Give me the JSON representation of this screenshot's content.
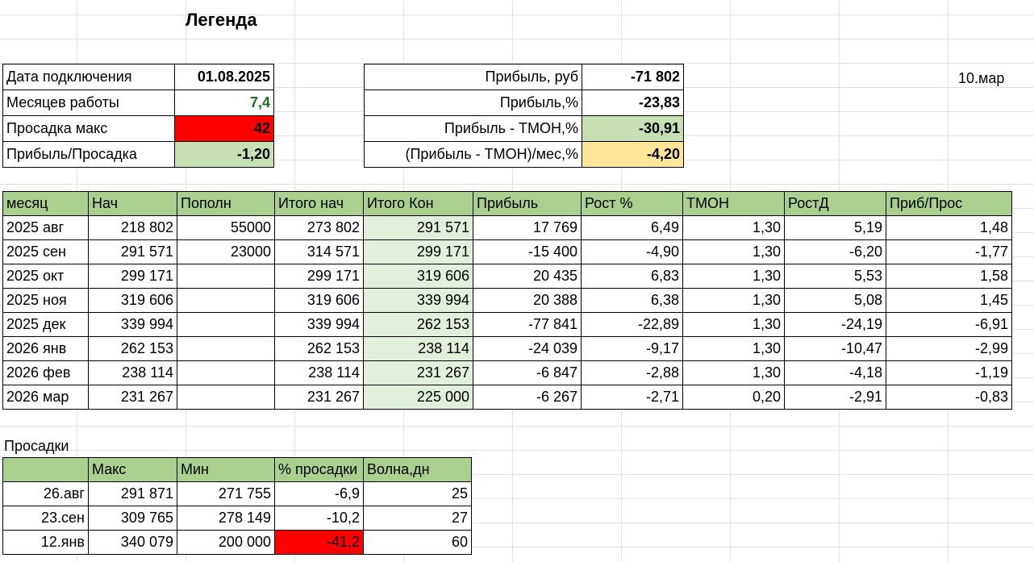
{
  "legend": {
    "title": "Легенда"
  },
  "date_label": "10.мар",
  "info_left": [
    {
      "label": "Дата подключения",
      "value": "01.08.2025"
    },
    {
      "label": "Месяцев работы",
      "value": "7,4"
    },
    {
      "label": "Просадка макс",
      "value": "42"
    },
    {
      "label": "Прибыль/Просадка",
      "value": "-1,20"
    }
  ],
  "info_right": [
    {
      "label": "Прибыль, руб",
      "value": "-71 802"
    },
    {
      "label": "Прибыль,%",
      "value": "-23,83"
    },
    {
      "label": "Прибыль - ТМОН,%",
      "value": "-30,91"
    },
    {
      "label": "(Прибыль - ТМОН)/мес,%",
      "value": "-4,20"
    }
  ],
  "main_table": {
    "headers": [
      "месяц",
      "Нач",
      "Пополн",
      "Итого нач",
      "Итого Кон",
      "Прибыль",
      "Рост %",
      "ТМОН",
      "РостД",
      "Приб/Прос"
    ],
    "rows": [
      [
        "2025 авг",
        "218 802",
        "55000",
        "273 802",
        "291 571",
        "17 769",
        "6,49",
        "1,30",
        "5,19",
        "1,48"
      ],
      [
        "2025 сен",
        "291 571",
        "23000",
        "314 571",
        "299 171",
        "-15 400",
        "-4,90",
        "1,30",
        "-6,20",
        "-1,77"
      ],
      [
        "2025 окт",
        "299 171",
        "",
        "299 171",
        "319 606",
        "20 435",
        "6,83",
        "1,30",
        "5,53",
        "1,58"
      ],
      [
        "2025 ноя",
        "319 606",
        "",
        "319 606",
        "339 994",
        "20 388",
        "6,38",
        "1,30",
        "5,08",
        "1,45"
      ],
      [
        "2025 дек",
        "339 994",
        "",
        "339 994",
        "262 153",
        "-77 841",
        "-22,89",
        "1,30",
        "-24,19",
        "-6,91"
      ],
      [
        "2026 янв",
        "262 153",
        "",
        "262 153",
        "238 114",
        "-24 039",
        "-9,17",
        "1,30",
        "-10,47",
        "-2,99"
      ],
      [
        "2026 фев",
        "238 114",
        "",
        "238 114",
        "231 267",
        "-6 847",
        "-2,88",
        "1,30",
        "-4,18",
        "-1,19"
      ],
      [
        "2026 мар",
        "231 267",
        "",
        "231 267",
        "225 000",
        "-6 267",
        "-2,71",
        "0,20",
        "-2,91",
        "-0,83"
      ]
    ]
  },
  "drawdowns": {
    "label": "Просадки",
    "headers": [
      "",
      "Макс",
      "Мин",
      "% просадки",
      "Волна,дн"
    ],
    "rows": [
      [
        "26.авг",
        "291 871",
        "271 755",
        "-6,9",
        "25"
      ],
      [
        "23.сен",
        "309 765",
        "278 149",
        "-10,2",
        "27"
      ],
      [
        "12.янв",
        "340 079",
        "200 000",
        "-41,2",
        "60"
      ]
    ]
  },
  "colors": {
    "header_green": "#a9d08e",
    "light_green": "#c6e0b4",
    "column_tint": "#e2efda",
    "alert_red": "#ff0000",
    "yellow": "#ffe699",
    "value_green_text": "#1f6b1f"
  }
}
